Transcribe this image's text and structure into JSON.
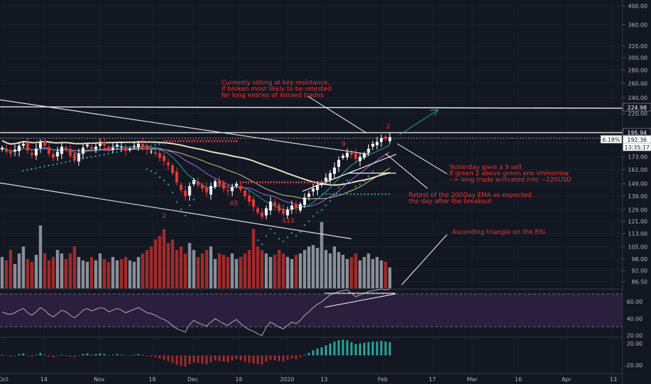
{
  "chart_data": {
    "type": "candlestick",
    "price_axis": {
      "ticks": [
        "400.00",
        "360.00",
        "320.00",
        "300.00",
        "280.00",
        "260.00",
        "240.00",
        "220.00",
        "200.00",
        "187.00",
        "173.00",
        "161.00",
        "149.00",
        "139.00",
        "129.00",
        "121.00",
        "113.00",
        "105.00",
        "98.00",
        "92.00",
        "86.50"
      ],
      "scale": "log",
      "ylim": [
        84,
        410
      ]
    },
    "rsi_axis": {
      "ticks": [
        "60.00",
        "40.00",
        "20.00"
      ],
      "ylim": [
        18,
        75
      ],
      "upper_band": 70,
      "lower_band": 30
    },
    "macd_axis": {
      "ticks": [
        "20.00",
        "-20.00"
      ]
    },
    "time_axis": [
      "Oct",
      "14",
      "Nov",
      "18",
      "Dec",
      "16",
      "2020",
      "13",
      "Feb",
      "17",
      "Mar",
      "16",
      "Apr",
      "13"
    ],
    "price_labels": {
      "resistance": "224.98",
      "upper": "195.94",
      "pct": "6.18%",
      "last": "192.36",
      "countdown": "13:35:17"
    },
    "annotations": {
      "resistance_note": [
        "Currently sitting at key resistance,",
        "if broken most likely to be retested",
        "for long entries of missed trades"
      ],
      "sell_note": [
        "Yesterday gave a 9 sell",
        "If green 2 above green one tmmorrow",
        "--> long trade acitvated into ~220USD"
      ],
      "ema_note": [
        "Retest of the 200Day EMA as expected",
        "the day after the breakout"
      ],
      "rsi_note": [
        "Ascending triangle on the RSI"
      ]
    },
    "td_labels": [
      "2",
      "A5",
      "S13",
      "9",
      "2"
    ],
    "closes": [
      182,
      178,
      176,
      180,
      184,
      186,
      179,
      175,
      181,
      187,
      184,
      176,
      172,
      178,
      183,
      180,
      174,
      170,
      176,
      182,
      185,
      181,
      183,
      186,
      184,
      180,
      182,
      185,
      183,
      179,
      181,
      184,
      186,
      183,
      180,
      178,
      176,
      172,
      169,
      165,
      158,
      150,
      144,
      139,
      147,
      152,
      148,
      145,
      142,
      147,
      151,
      148,
      145,
      143,
      146,
      149,
      144,
      139,
      135,
      131,
      127,
      124,
      130,
      135,
      132,
      128,
      126,
      129,
      132,
      130,
      133,
      138,
      141,
      145,
      148,
      150,
      154,
      158,
      163,
      170,
      174,
      177,
      175,
      171,
      173,
      176,
      181,
      186,
      188,
      192,
      191,
      193
    ],
    "volumes": [
      0.45,
      0.4,
      0.55,
      0.35,
      0.5,
      0.6,
      0.42,
      0.38,
      0.48,
      0.9,
      0.5,
      0.4,
      0.45,
      0.55,
      0.5,
      0.42,
      0.5,
      0.6,
      0.45,
      0.4,
      0.38,
      0.45,
      0.4,
      0.5,
      0.42,
      0.38,
      0.45,
      0.4,
      0.42,
      0.45,
      0.4,
      0.38,
      0.45,
      0.5,
      0.55,
      0.6,
      0.7,
      0.75,
      0.85,
      0.65,
      0.7,
      0.55,
      0.6,
      0.5,
      0.65,
      0.55,
      0.45,
      0.5,
      0.55,
      0.6,
      0.42,
      0.5,
      0.48,
      0.45,
      0.5,
      0.42,
      0.45,
      0.5,
      0.55,
      0.85,
      0.6,
      0.55,
      0.5,
      0.45,
      0.48,
      0.55,
      0.5,
      0.45,
      0.42,
      0.48,
      0.5,
      0.55,
      0.6,
      0.62,
      0.58,
      0.95,
      0.55,
      0.5,
      0.6,
      0.52,
      0.48,
      0.42,
      0.45,
      0.5,
      0.4,
      0.45,
      0.5,
      0.42,
      0.45,
      0.4,
      0.38,
      0.3
    ],
    "rsi": [
      48,
      46,
      45,
      47,
      50,
      52,
      47,
      44,
      48,
      53,
      50,
      45,
      42,
      46,
      50,
      48,
      44,
      41,
      45,
      50,
      52,
      49,
      51,
      53,
      52,
      48,
      50,
      52,
      50,
      47,
      49,
      51,
      53,
      50,
      47,
      46,
      44,
      41,
      39,
      36,
      32,
      28,
      26,
      24,
      33,
      38,
      35,
      33,
      31,
      36,
      40,
      37,
      34,
      32,
      36,
      39,
      34,
      30,
      27,
      25,
      22,
      20,
      30,
      36,
      33,
      30,
      28,
      32,
      36,
      34,
      38,
      44,
      48,
      53,
      57,
      60,
      64,
      68,
      70,
      72,
      73,
      74,
      70,
      66,
      68,
      70,
      72,
      73,
      74,
      75,
      74,
      75
    ],
    "macd": [
      1,
      -1,
      -2,
      0,
      2,
      3,
      -1,
      -2,
      1,
      4,
      1,
      -2,
      -3,
      -1,
      1,
      0,
      -2,
      -3,
      -1,
      2,
      3,
      1,
      2,
      3,
      2,
      0,
      1,
      2,
      1,
      -1,
      0,
      1,
      2,
      1,
      -1,
      -2,
      -3,
      -5,
      -7,
      -9,
      -12,
      -15,
      -17,
      -18,
      -14,
      -11,
      -12,
      -13,
      -14,
      -11,
      -8,
      -9,
      -10,
      -11,
      -8,
      -6,
      -8,
      -10,
      -12,
      -13,
      -14,
      -15,
      -10,
      -7,
      -8,
      -9,
      -10,
      -7,
      -5,
      -6,
      -3,
      1,
      4,
      8,
      11,
      13,
      16,
      19,
      22,
      24,
      25,
      24,
      21,
      18,
      19,
      20,
      21,
      22,
      22,
      23,
      22,
      21
    ]
  }
}
